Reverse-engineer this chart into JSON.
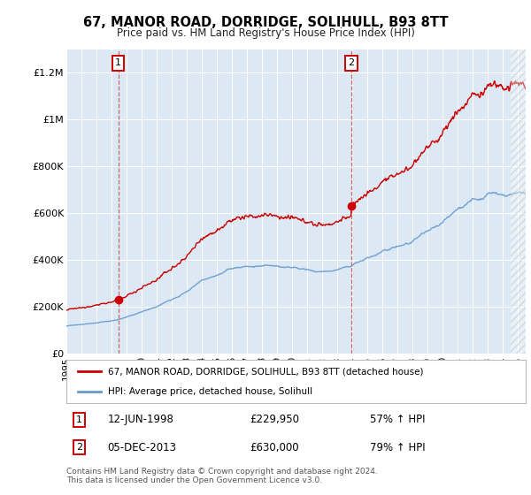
{
  "title": "67, MANOR ROAD, DORRIDGE, SOLIHULL, B93 8TT",
  "subtitle": "Price paid vs. HM Land Registry's House Price Index (HPI)",
  "red_label": "67, MANOR ROAD, DORRIDGE, SOLIHULL, B93 8TT (detached house)",
  "blue_label": "HPI: Average price, detached house, Solihull",
  "annotation1_date": "12-JUN-1998",
  "annotation1_price": "£229,950",
  "annotation1_hpi": "57% ↑ HPI",
  "annotation2_date": "05-DEC-2013",
  "annotation2_price": "£630,000",
  "annotation2_hpi": "79% ↑ HPI",
  "purchase1_year": 1998.45,
  "purchase1_value": 229950,
  "purchase2_year": 2013.92,
  "purchase2_value": 630000,
  "ylim_max": 1300000,
  "ylim_min": 0,
  "xlim_min": 1995,
  "xlim_max": 2025.5,
  "footer": "Contains HM Land Registry data © Crown copyright and database right 2024.\nThis data is licensed under the Open Government Licence v3.0.",
  "bg_color": "#dce9f5",
  "hatch_color": "#c8d8e8",
  "grid_color": "#ffffff",
  "red_color": "#cc0000",
  "blue_color": "#6699cc",
  "red_seed": 12345,
  "blue_seed": 99
}
